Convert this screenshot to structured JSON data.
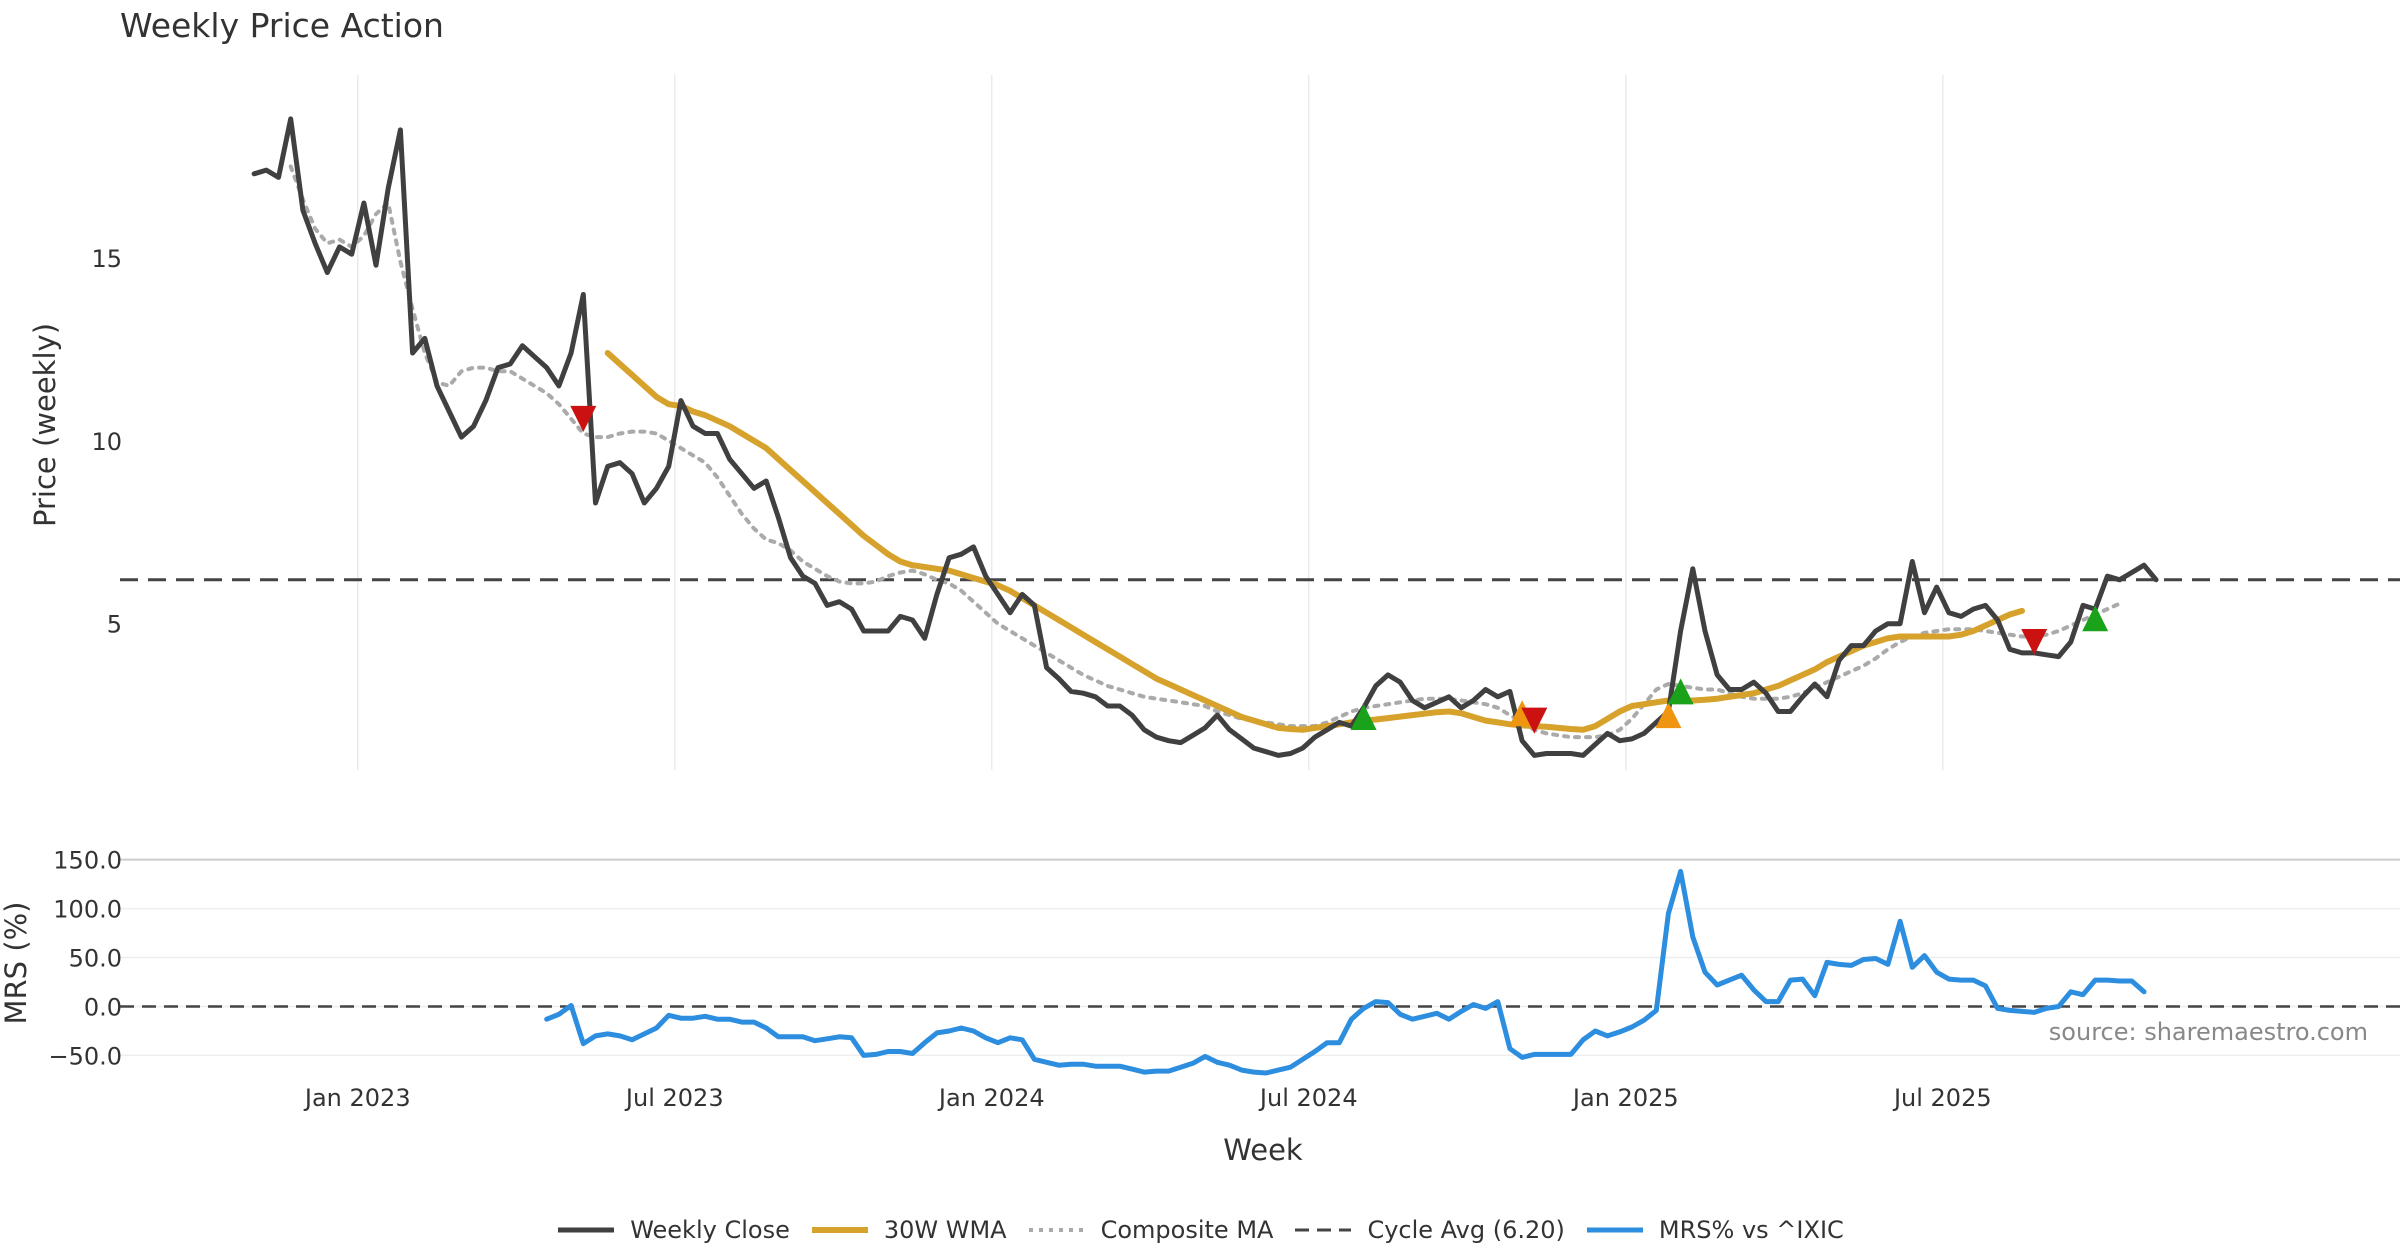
{
  "page": {
    "title": "Weekly Price Action",
    "source": "source: sharemaestro.com"
  },
  "colors": {
    "close": "#404040",
    "wma": "#d6a22b",
    "composite": "#aaaaaa",
    "cycle": "#444444",
    "mrs": "#2d8ee0",
    "buy": "#1aa31a",
    "sell": "#cc1111",
    "caution": "#f0950f"
  },
  "chart_data": [
    {
      "type": "line",
      "title": "Weekly Price Action",
      "ylabel": "Price (weekly)",
      "xlabel": "Week",
      "xlim": [
        -11,
        176
      ],
      "ylim": [
        1.0,
        20.0
      ],
      "yticks": [
        5,
        10,
        15
      ],
      "x_ticks": [
        {
          "x": 8.5,
          "label": "Jan 2023"
        },
        {
          "x": 34.5,
          "label": "Jul 2023"
        },
        {
          "x": 60.5,
          "label": "Jan 2024"
        },
        {
          "x": 86.5,
          "label": "Jul 2024"
        },
        {
          "x": 112.5,
          "label": "Jan 2025"
        },
        {
          "x": 138.5,
          "label": "Jul 2025"
        }
      ],
      "reference_line": {
        "label": "Cycle Avg (6.20)",
        "value": 6.2
      },
      "series": [
        {
          "name": "Weekly Close",
          "start": 0,
          "values": [
            17.3,
            17.4,
            17.2,
            18.8,
            16.3,
            15.4,
            14.6,
            15.3,
            15.1,
            16.5,
            14.8,
            16.9,
            18.5,
            12.4,
            12.8,
            11.5,
            10.8,
            10.1,
            10.4,
            11.1,
            12.0,
            12.1,
            12.6,
            12.3,
            12.0,
            11.5,
            12.4,
            14.0,
            8.3,
            9.3,
            9.4,
            9.1,
            8.3,
            8.7,
            9.3,
            11.1,
            10.4,
            10.2,
            10.2,
            9.5,
            9.1,
            8.7,
            8.9,
            7.9,
            6.8,
            6.3,
            6.1,
            5.5,
            5.6,
            5.4,
            4.8,
            4.8,
            4.8,
            5.2,
            5.1,
            4.6,
            5.8,
            6.8,
            6.9,
            7.1,
            6.3,
            5.8,
            5.3,
            5.8,
            5.5,
            3.8,
            3.5,
            3.15,
            3.1,
            3.0,
            2.75,
            2.75,
            2.5,
            2.1,
            1.9,
            1.8,
            1.75,
            1.95,
            2.15,
            2.5,
            2.1,
            1.85,
            1.6,
            1.5,
            1.4,
            1.45,
            1.6,
            1.9,
            2.1,
            2.3,
            2.2,
            2.7,
            3.3,
            3.6,
            3.4,
            2.9,
            2.7,
            2.85,
            3.0,
            2.7,
            2.9,
            3.2,
            3.0,
            3.15,
            1.8,
            1.4,
            1.45,
            1.45,
            1.45,
            1.4,
            1.7,
            2.0,
            1.8,
            1.85,
            2.0,
            2.3,
            2.6,
            4.8,
            6.5,
            4.8,
            3.6,
            3.2,
            3.2,
            3.4,
            3.1,
            2.6,
            2.6,
            3.0,
            3.35,
            3.0,
            4.0,
            4.4,
            4.4,
            4.8,
            5.0,
            5.0,
            6.7,
            5.3,
            6.0,
            5.3,
            5.2,
            5.4,
            5.5,
            5.1,
            4.3,
            4.2,
            4.2,
            4.15,
            4.1,
            4.5,
            5.5,
            5.4,
            6.3,
            6.2,
            6.4,
            6.6,
            6.2
          ]
        },
        {
          "name": "30W WMA",
          "start": 29,
          "values": [
            12.4,
            12.1,
            11.8,
            11.5,
            11.2,
            11.0,
            10.95,
            10.8,
            10.7,
            10.55,
            10.4,
            10.2,
            10.0,
            9.8,
            9.5,
            9.2,
            8.9,
            8.6,
            8.3,
            8.0,
            7.7,
            7.4,
            7.15,
            6.9,
            6.7,
            6.6,
            6.55,
            6.5,
            6.45,
            6.35,
            6.25,
            6.15,
            6.05,
            5.9,
            5.7,
            5.5,
            5.3,
            5.1,
            4.9,
            4.7,
            4.5,
            4.3,
            4.1,
            3.9,
            3.7,
            3.5,
            3.35,
            3.2,
            3.05,
            2.9,
            2.75,
            2.6,
            2.45,
            2.35,
            2.25,
            2.15,
            2.12,
            2.1,
            2.15,
            2.2,
            2.25,
            2.3,
            2.35,
            2.38,
            2.42,
            2.46,
            2.5,
            2.54,
            2.58,
            2.6,
            2.55,
            2.45,
            2.35,
            2.3,
            2.25,
            2.22,
            2.2,
            2.18,
            2.15,
            2.12,
            2.1,
            2.2,
            2.4,
            2.6,
            2.75,
            2.8,
            2.85,
            2.9,
            2.9,
            2.9,
            2.92,
            2.95,
            3.0,
            3.05,
            3.1,
            3.2,
            3.3,
            3.45,
            3.6,
            3.75,
            3.95,
            4.1,
            4.25,
            4.4,
            4.5,
            4.6,
            4.65,
            4.65,
            4.65,
            4.65,
            4.65,
            4.7,
            4.8,
            4.95,
            5.1,
            5.25,
            5.35
          ]
        },
        {
          "name": "Composite MA",
          "start": 3,
          "values": [
            17.5,
            16.6,
            15.8,
            15.4,
            15.5,
            15.3,
            15.6,
            16.2,
            16.5,
            14.9,
            13.6,
            12.4,
            11.6,
            11.5,
            11.9,
            12.0,
            12.0,
            11.9,
            11.9,
            11.7,
            11.5,
            11.3,
            11.0,
            10.6,
            10.2,
            10.1,
            10.1,
            10.2,
            10.25,
            10.25,
            10.2,
            10.0,
            9.8,
            9.6,
            9.4,
            9.0,
            8.5,
            8.0,
            7.6,
            7.3,
            7.2,
            7.0,
            6.7,
            6.5,
            6.3,
            6.15,
            6.1,
            6.1,
            6.15,
            6.3,
            6.4,
            6.45,
            6.35,
            6.2,
            6.1,
            5.9,
            5.6,
            5.3,
            5.0,
            4.8,
            4.6,
            4.4,
            4.2,
            4.0,
            3.8,
            3.6,
            3.45,
            3.3,
            3.2,
            3.1,
            3.0,
            2.95,
            2.9,
            2.85,
            2.8,
            2.75,
            2.6,
            2.5,
            2.4,
            2.35,
            2.3,
            2.25,
            2.2,
            2.2,
            2.2,
            2.3,
            2.45,
            2.6,
            2.7,
            2.75,
            2.8,
            2.85,
            2.9,
            2.95,
            2.95,
            2.95,
            2.9,
            2.85,
            2.8,
            2.7,
            2.5,
            2.3,
            2.1,
            2.0,
            1.95,
            1.9,
            1.9,
            1.9,
            1.95,
            2.1,
            2.4,
            2.8,
            3.2,
            3.35,
            3.3,
            3.25,
            3.2,
            3.2,
            3.1,
            3.0,
            2.95,
            2.95,
            2.95,
            3.0,
            3.1,
            3.25,
            3.4,
            3.55,
            3.7,
            3.85,
            4.05,
            4.3,
            4.5,
            4.65,
            4.75,
            4.8,
            4.85,
            4.85,
            4.85,
            4.8,
            4.75,
            4.7,
            4.65,
            4.65,
            4.7,
            4.8,
            4.95,
            5.1,
            5.25,
            5.4,
            5.55
          ]
        }
      ],
      "markers": [
        {
          "type": "sell",
          "x": 27,
          "y": 10.6
        },
        {
          "type": "buy",
          "x": 91,
          "y": 2.45
        },
        {
          "type": "caution",
          "x": 104,
          "y": 2.55
        },
        {
          "type": "sell",
          "x": 105,
          "y": 2.35
        },
        {
          "type": "caution",
          "x": 116,
          "y": 2.5
        },
        {
          "type": "buy",
          "x": 117,
          "y": 3.15
        },
        {
          "type": "sell",
          "x": 146,
          "y": 4.5
        },
        {
          "type": "buy",
          "x": 151,
          "y": 5.15
        }
      ]
    },
    {
      "type": "line",
      "ylabel": "MRS (%)",
      "ylim": [
        -70,
        165
      ],
      "yticks": [
        -50,
        0,
        50,
        100,
        150
      ],
      "ytick_labels": [
        "−50.0",
        "0.0",
        "50.0",
        "100.0",
        "150.0"
      ],
      "reference_line": {
        "value": 0
      },
      "series": [
        {
          "name": "MRS% vs ^IXIC",
          "start": 24,
          "values": [
            -13,
            -8,
            1,
            -38,
            -30,
            -28,
            -30,
            -34,
            -28,
            -22,
            -9,
            -12,
            -12,
            -10,
            -13,
            -13,
            -16,
            -16,
            -22,
            -31,
            -31,
            -31,
            -35,
            -33,
            -31,
            -32,
            -50,
            -49,
            -46,
            -46,
            -48,
            -37,
            -27,
            -25,
            -22,
            -25,
            -32,
            -37,
            -32,
            -34,
            -54,
            -57,
            -60,
            -59,
            -59,
            -61,
            -61,
            -61,
            -64,
            -67,
            -66,
            -66,
            -62,
            -58,
            -51,
            -57,
            -60,
            -65,
            -67,
            -68,
            -65,
            -62,
            -54,
            -46,
            -37,
            -37,
            -13,
            -2,
            5,
            4,
            -8,
            -13,
            -10,
            -7,
            -13,
            -5,
            2,
            -2,
            5,
            -43,
            -52,
            -49,
            -49,
            -49,
            -49,
            -34,
            -25,
            -30,
            -26,
            -21,
            -14,
            -4,
            95,
            138,
            71,
            35,
            22,
            27,
            32,
            17,
            5,
            5,
            27,
            28,
            11,
            45,
            43,
            42,
            48,
            49,
            43,
            87,
            40,
            52,
            35,
            28,
            27,
            27,
            21,
            -2,
            -4,
            -5,
            -6,
            -2,
            0,
            15,
            12,
            27,
            27,
            26,
            26,
            15
          ]
        }
      ]
    }
  ],
  "legend": {
    "close": "Weekly Close",
    "wma": "30W WMA",
    "composite": "Composite MA",
    "cycle": "Cycle Avg (6.20)",
    "mrs": "MRS% vs ^IXIC"
  }
}
